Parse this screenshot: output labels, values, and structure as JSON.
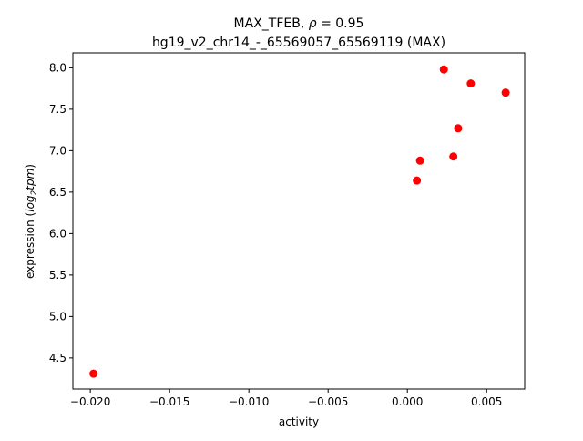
{
  "chart_data": {
    "type": "scatter",
    "title_main": "MAX_TFEB, ",
    "title_rho_symbol": "ρ",
    "title_rho_value": " = 0.95",
    "subtitle": "hg19_v2_chr14_-_65569057_65569119 (MAX)",
    "xlabel": "activity",
    "ylabel_prefix": "expression (",
    "ylabel_log": "log",
    "ylabel_base": "2",
    "ylabel_tpm": "tpm",
    "ylabel_suffix": ")",
    "xlim": [
      -0.0211,
      0.0074
    ],
    "ylim": [
      4.125,
      8.18
    ],
    "xticks": [
      {
        "value": -0.02,
        "label": "−0.020"
      },
      {
        "value": -0.015,
        "label": "−0.015"
      },
      {
        "value": -0.01,
        "label": "−0.010"
      },
      {
        "value": -0.005,
        "label": "−0.005"
      },
      {
        "value": 0.0,
        "label": "0.000"
      },
      {
        "value": 0.005,
        "label": "0.005"
      }
    ],
    "yticks": [
      {
        "value": 4.5,
        "label": "4.5"
      },
      {
        "value": 5.0,
        "label": "5.0"
      },
      {
        "value": 5.5,
        "label": "5.5"
      },
      {
        "value": 6.0,
        "label": "6.0"
      },
      {
        "value": 6.5,
        "label": "6.5"
      },
      {
        "value": 7.0,
        "label": "7.0"
      },
      {
        "value": 7.5,
        "label": "7.5"
      },
      {
        "value": 8.0,
        "label": "8.0"
      }
    ],
    "points": [
      {
        "x": -0.0198,
        "y": 4.31
      },
      {
        "x": 0.0006,
        "y": 6.64
      },
      {
        "x": 0.0008,
        "y": 6.88
      },
      {
        "x": 0.0023,
        "y": 7.98
      },
      {
        "x": 0.0029,
        "y": 6.93
      },
      {
        "x": 0.0032,
        "y": 7.27
      },
      {
        "x": 0.004,
        "y": 7.81
      },
      {
        "x": 0.0062,
        "y": 7.7
      }
    ],
    "marker_color": "#ff0000",
    "grid": false,
    "legend": "none"
  }
}
